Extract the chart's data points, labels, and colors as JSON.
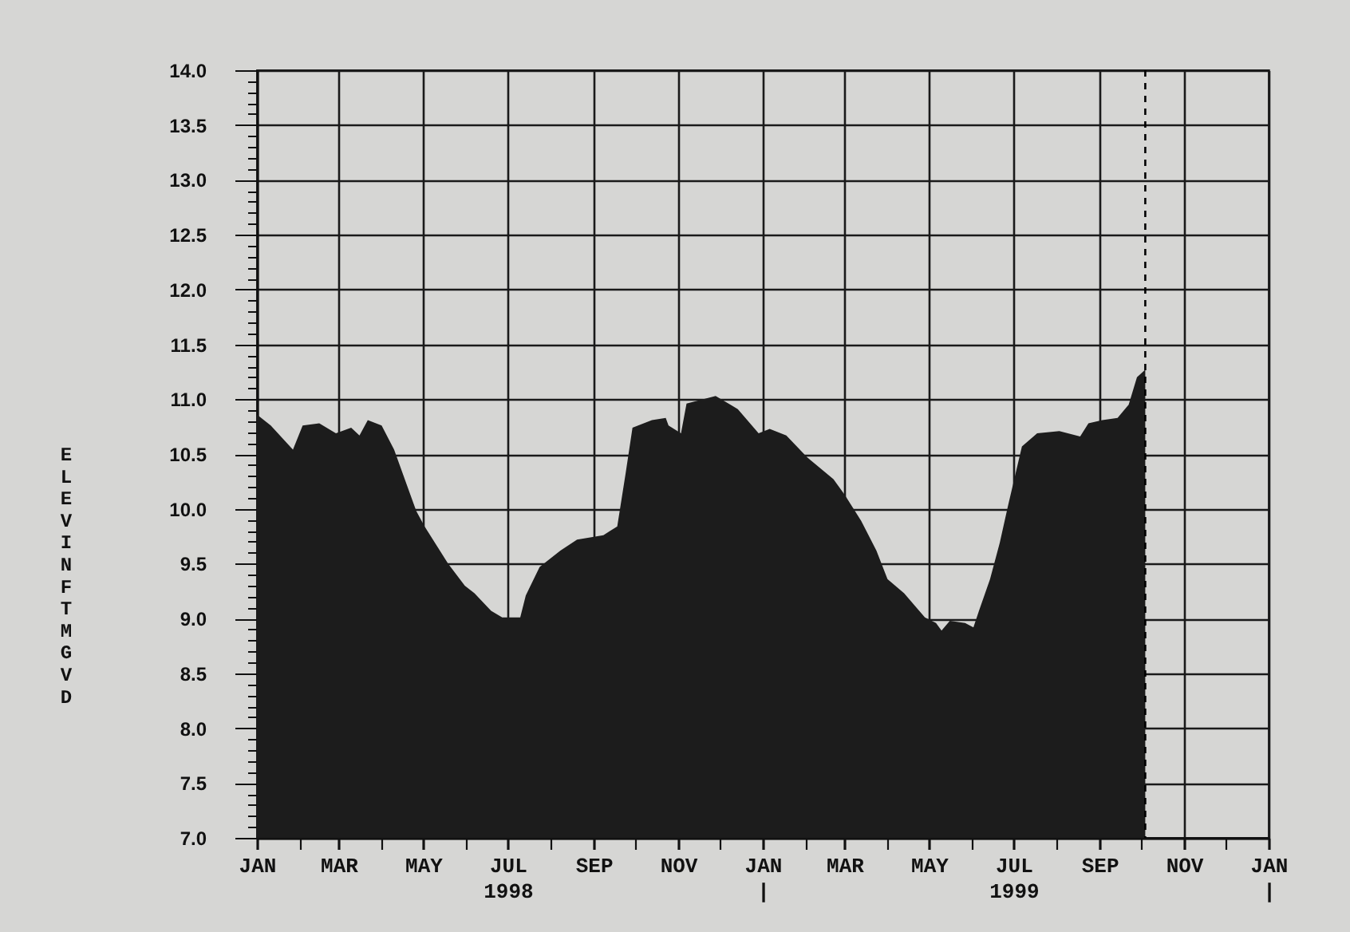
{
  "chart_data": {
    "type": "area",
    "ylabel": "E L E V  I N  F T  M G V D",
    "color": "#1c1c1c",
    "x": [
      "1998-01-01",
      "1998-01-11",
      "1998-01-27",
      "1998-02-03",
      "1998-02-15",
      "1998-02-27",
      "1998-03-10",
      "1998-03-16",
      "1998-03-22",
      "1998-04-01",
      "1998-04-10",
      "1998-04-26",
      "1998-05-02",
      "1998-05-19",
      "1998-05-31",
      "1998-06-07",
      "1998-06-19",
      "1998-06-27",
      "1998-07-10",
      "1998-07-14",
      "1998-07-24",
      "1998-08-08",
      "1998-08-20",
      "1998-09-08",
      "1998-09-18",
      "1998-09-24",
      "1998-09-29",
      "1998-10-13",
      "1998-10-23",
      "1998-10-25",
      "1998-11-03",
      "1998-11-07",
      "1998-11-28",
      "1998-12-14",
      "1998-12-29",
      "1999-01-06",
      "1999-01-18",
      "1999-02-02",
      "1999-02-21",
      "1999-03-01",
      "1999-03-13",
      "1999-03-24",
      "1999-04-01",
      "1999-04-13",
      "1999-04-28",
      "1999-05-06",
      "1999-05-10",
      "1999-05-16",
      "1999-05-27",
      "1999-06-02",
      "1999-06-06",
      "1999-06-14",
      "1999-06-21",
      "1999-06-27",
      "1999-07-07",
      "1999-07-18",
      "1999-08-03",
      "1999-08-18",
      "1999-08-24",
      "1999-09-03",
      "1999-09-14",
      "1999-09-22",
      "1999-09-28",
      "1999-10-04"
    ],
    "values": [
      10.86,
      10.76,
      10.54,
      10.76,
      10.78,
      10.69,
      10.74,
      10.67,
      10.81,
      10.76,
      10.54,
      9.98,
      9.84,
      9.5,
      9.3,
      9.23,
      9.07,
      9.01,
      9.01,
      9.21,
      9.47,
      9.62,
      9.72,
      9.76,
      9.84,
      10.32,
      10.74,
      10.81,
      10.83,
      10.76,
      10.69,
      10.96,
      11.03,
      10.91,
      10.69,
      10.73,
      10.67,
      10.47,
      10.27,
      10.13,
      9.89,
      9.62,
      9.36,
      9.23,
      9.01,
      8.96,
      8.89,
      8.98,
      8.96,
      8.92,
      9.07,
      9.36,
      9.69,
      10.03,
      10.57,
      10.69,
      10.71,
      10.66,
      10.78,
      10.81,
      10.83,
      10.95,
      11.2,
      11.27
    ],
    "xlim": [
      "1998-01-01",
      "2000-01-01"
    ],
    "xticks": [
      {
        "value": "1998-01-01",
        "label": "JAN"
      },
      {
        "value": "1998-02-01",
        "label": null
      },
      {
        "value": "1998-03-01",
        "label": "MAR"
      },
      {
        "value": "1998-04-01",
        "label": null
      },
      {
        "value": "1998-05-01",
        "label": "MAY"
      },
      {
        "value": "1998-06-01",
        "label": null
      },
      {
        "value": "1998-07-01",
        "label": "JUL\n1998"
      },
      {
        "value": "1998-08-01",
        "label": null
      },
      {
        "value": "1998-09-01",
        "label": "SEP"
      },
      {
        "value": "1998-10-01",
        "label": null
      },
      {
        "value": "1998-11-01",
        "label": "NOV"
      },
      {
        "value": "1998-12-01",
        "label": null
      },
      {
        "value": "1999-01-01",
        "label": "JAN\n|"
      },
      {
        "value": "1999-02-01",
        "label": null
      },
      {
        "value": "1999-03-01",
        "label": "MAR"
      },
      {
        "value": "1999-04-01",
        "label": null
      },
      {
        "value": "1999-05-01",
        "label": "MAY"
      },
      {
        "value": "1999-06-01",
        "label": null
      },
      {
        "value": "1999-07-01",
        "label": "JUL\n1999"
      },
      {
        "value": "1999-08-01",
        "label": null
      },
      {
        "value": "1999-09-01",
        "label": "SEP"
      },
      {
        "value": "1999-10-01",
        "label": null
      },
      {
        "value": "1999-11-01",
        "label": "NOV"
      },
      {
        "value": "1999-12-01",
        "label": null
      },
      {
        "value": "2000-01-01",
        "label": "JAN\n|"
      }
    ],
    "ylim": [
      7,
      14
    ],
    "yticks": [
      {
        "value": 7,
        "label": "7.0"
      },
      {
        "value": 7.1,
        "label": null
      },
      {
        "value": 7.2,
        "label": null
      },
      {
        "value": 7.3,
        "label": null
      },
      {
        "value": 7.4,
        "label": null
      },
      {
        "value": 7.5,
        "label": "7.5"
      },
      {
        "value": 7.6,
        "label": null
      },
      {
        "value": 7.7,
        "label": null
      },
      {
        "value": 7.8,
        "label": null
      },
      {
        "value": 7.9,
        "label": null
      },
      {
        "value": 8,
        "label": "8.0"
      },
      {
        "value": 8.1,
        "label": null
      },
      {
        "value": 8.2,
        "label": null
      },
      {
        "value": 8.3,
        "label": null
      },
      {
        "value": 8.4,
        "label": null
      },
      {
        "value": 8.5,
        "label": "8.5"
      },
      {
        "value": 8.6,
        "label": null
      },
      {
        "value": 8.7,
        "label": null
      },
      {
        "value": 8.8,
        "label": null
      },
      {
        "value": 8.9,
        "label": null
      },
      {
        "value": 9,
        "label": "9.0"
      },
      {
        "value": 9.1,
        "label": null
      },
      {
        "value": 9.2,
        "label": null
      },
      {
        "value": 9.3,
        "label": null
      },
      {
        "value": 9.4,
        "label": null
      },
      {
        "value": 9.5,
        "label": "9.5"
      },
      {
        "value": 9.6,
        "label": null
      },
      {
        "value": 9.7,
        "label": null
      },
      {
        "value": 9.8,
        "label": null
      },
      {
        "value": 9.9,
        "label": null
      },
      {
        "value": 10,
        "label": "10.0"
      },
      {
        "value": 10.1,
        "label": null
      },
      {
        "value": 10.2,
        "label": null
      },
      {
        "value": 10.3,
        "label": null
      },
      {
        "value": 10.4,
        "label": null
      },
      {
        "value": 10.5,
        "label": "10.5"
      },
      {
        "value": 10.6,
        "label": null
      },
      {
        "value": 10.7,
        "label": null
      },
      {
        "value": 10.8,
        "label": null
      },
      {
        "value": 10.9,
        "label": null
      },
      {
        "value": 11,
        "label": "11.0"
      },
      {
        "value": 11.1,
        "label": null
      },
      {
        "value": 11.2,
        "label": null
      },
      {
        "value": 11.3,
        "label": null
      },
      {
        "value": 11.4,
        "label": null
      },
      {
        "value": 11.5,
        "label": "11.5"
      },
      {
        "value": 11.6,
        "label": null
      },
      {
        "value": 11.7,
        "label": null
      },
      {
        "value": 11.8,
        "label": null
      },
      {
        "value": 11.9,
        "label": null
      },
      {
        "value": 12,
        "label": "12.0"
      },
      {
        "value": 12.1,
        "label": null
      },
      {
        "value": 12.2,
        "label": null
      },
      {
        "value": 12.3,
        "label": null
      },
      {
        "value": 12.4,
        "label": null
      },
      {
        "value": 12.5,
        "label": "12.5"
      },
      {
        "value": 12.6,
        "label": null
      },
      {
        "value": 12.7,
        "label": null
      },
      {
        "value": 12.8,
        "label": null
      },
      {
        "value": 12.9,
        "label": null
      },
      {
        "value": 13,
        "label": "13.0"
      },
      {
        "value": 13.1,
        "label": null
      },
      {
        "value": 13.2,
        "label": null
      },
      {
        "value": 13.3,
        "label": null
      },
      {
        "value": 13.4,
        "label": null
      },
      {
        "value": 13.5,
        "label": "13.5"
      },
      {
        "value": 13.6,
        "label": null
      },
      {
        "value": 13.7,
        "label": null
      },
      {
        "value": 13.8,
        "label": null
      },
      {
        "value": 13.9,
        "label": null
      },
      {
        "value": 14,
        "label": "14.0"
      }
    ],
    "grid": true,
    "ref_lines": [
      {
        "axis": "x",
        "value": "1999-10-04",
        "line_style": "dashed",
        "color": "#000000"
      }
    ]
  }
}
